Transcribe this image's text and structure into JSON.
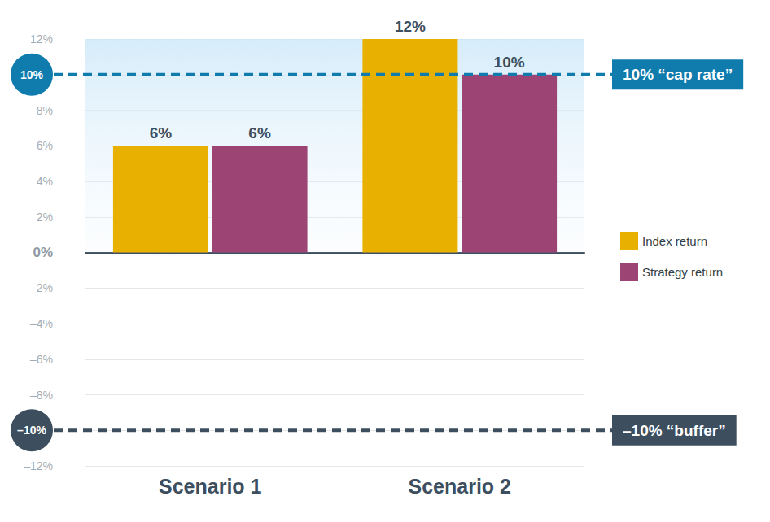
{
  "chart_data": {
    "type": "bar",
    "categories": [
      "Scenario 1",
      "Scenario 2"
    ],
    "series": [
      {
        "name": "Index return",
        "color": "#e8b000",
        "values": [
          6,
          12
        ],
        "value_labels": [
          "6%",
          "12%"
        ]
      },
      {
        "name": "Strategy return",
        "color": "#9c4574",
        "values": [
          6,
          10
        ],
        "value_labels": [
          "6%",
          "10%"
        ]
      }
    ],
    "ylim": [
      -12,
      12
    ],
    "yticks": [
      {
        "value": -12,
        "label": "–12%"
      },
      {
        "value": -10,
        "label": "–10%"
      },
      {
        "value": -8,
        "label": "–8%"
      },
      {
        "value": -6,
        "label": "–6%"
      },
      {
        "value": -4,
        "label": "–4%"
      },
      {
        "value": -2,
        "label": "–2%"
      },
      {
        "value": 0,
        "label": "0%"
      },
      {
        "value": 2,
        "label": "2%"
      },
      {
        "value": 4,
        "label": "4%"
      },
      {
        "value": 6,
        "label": "6%"
      },
      {
        "value": 8,
        "label": "8%"
      },
      {
        "value": 10,
        "label": "10%"
      },
      {
        "value": 12,
        "label": "12%"
      }
    ],
    "annotations": [
      {
        "text": "10% “cap rate”",
        "y": 10,
        "color": "#0f7cad"
      },
      {
        "text": "–10% “buffer”",
        "y": -10,
        "color": "#3d4f5f"
      }
    ],
    "grid": true,
    "legend": "right",
    "data_labels": true
  }
}
